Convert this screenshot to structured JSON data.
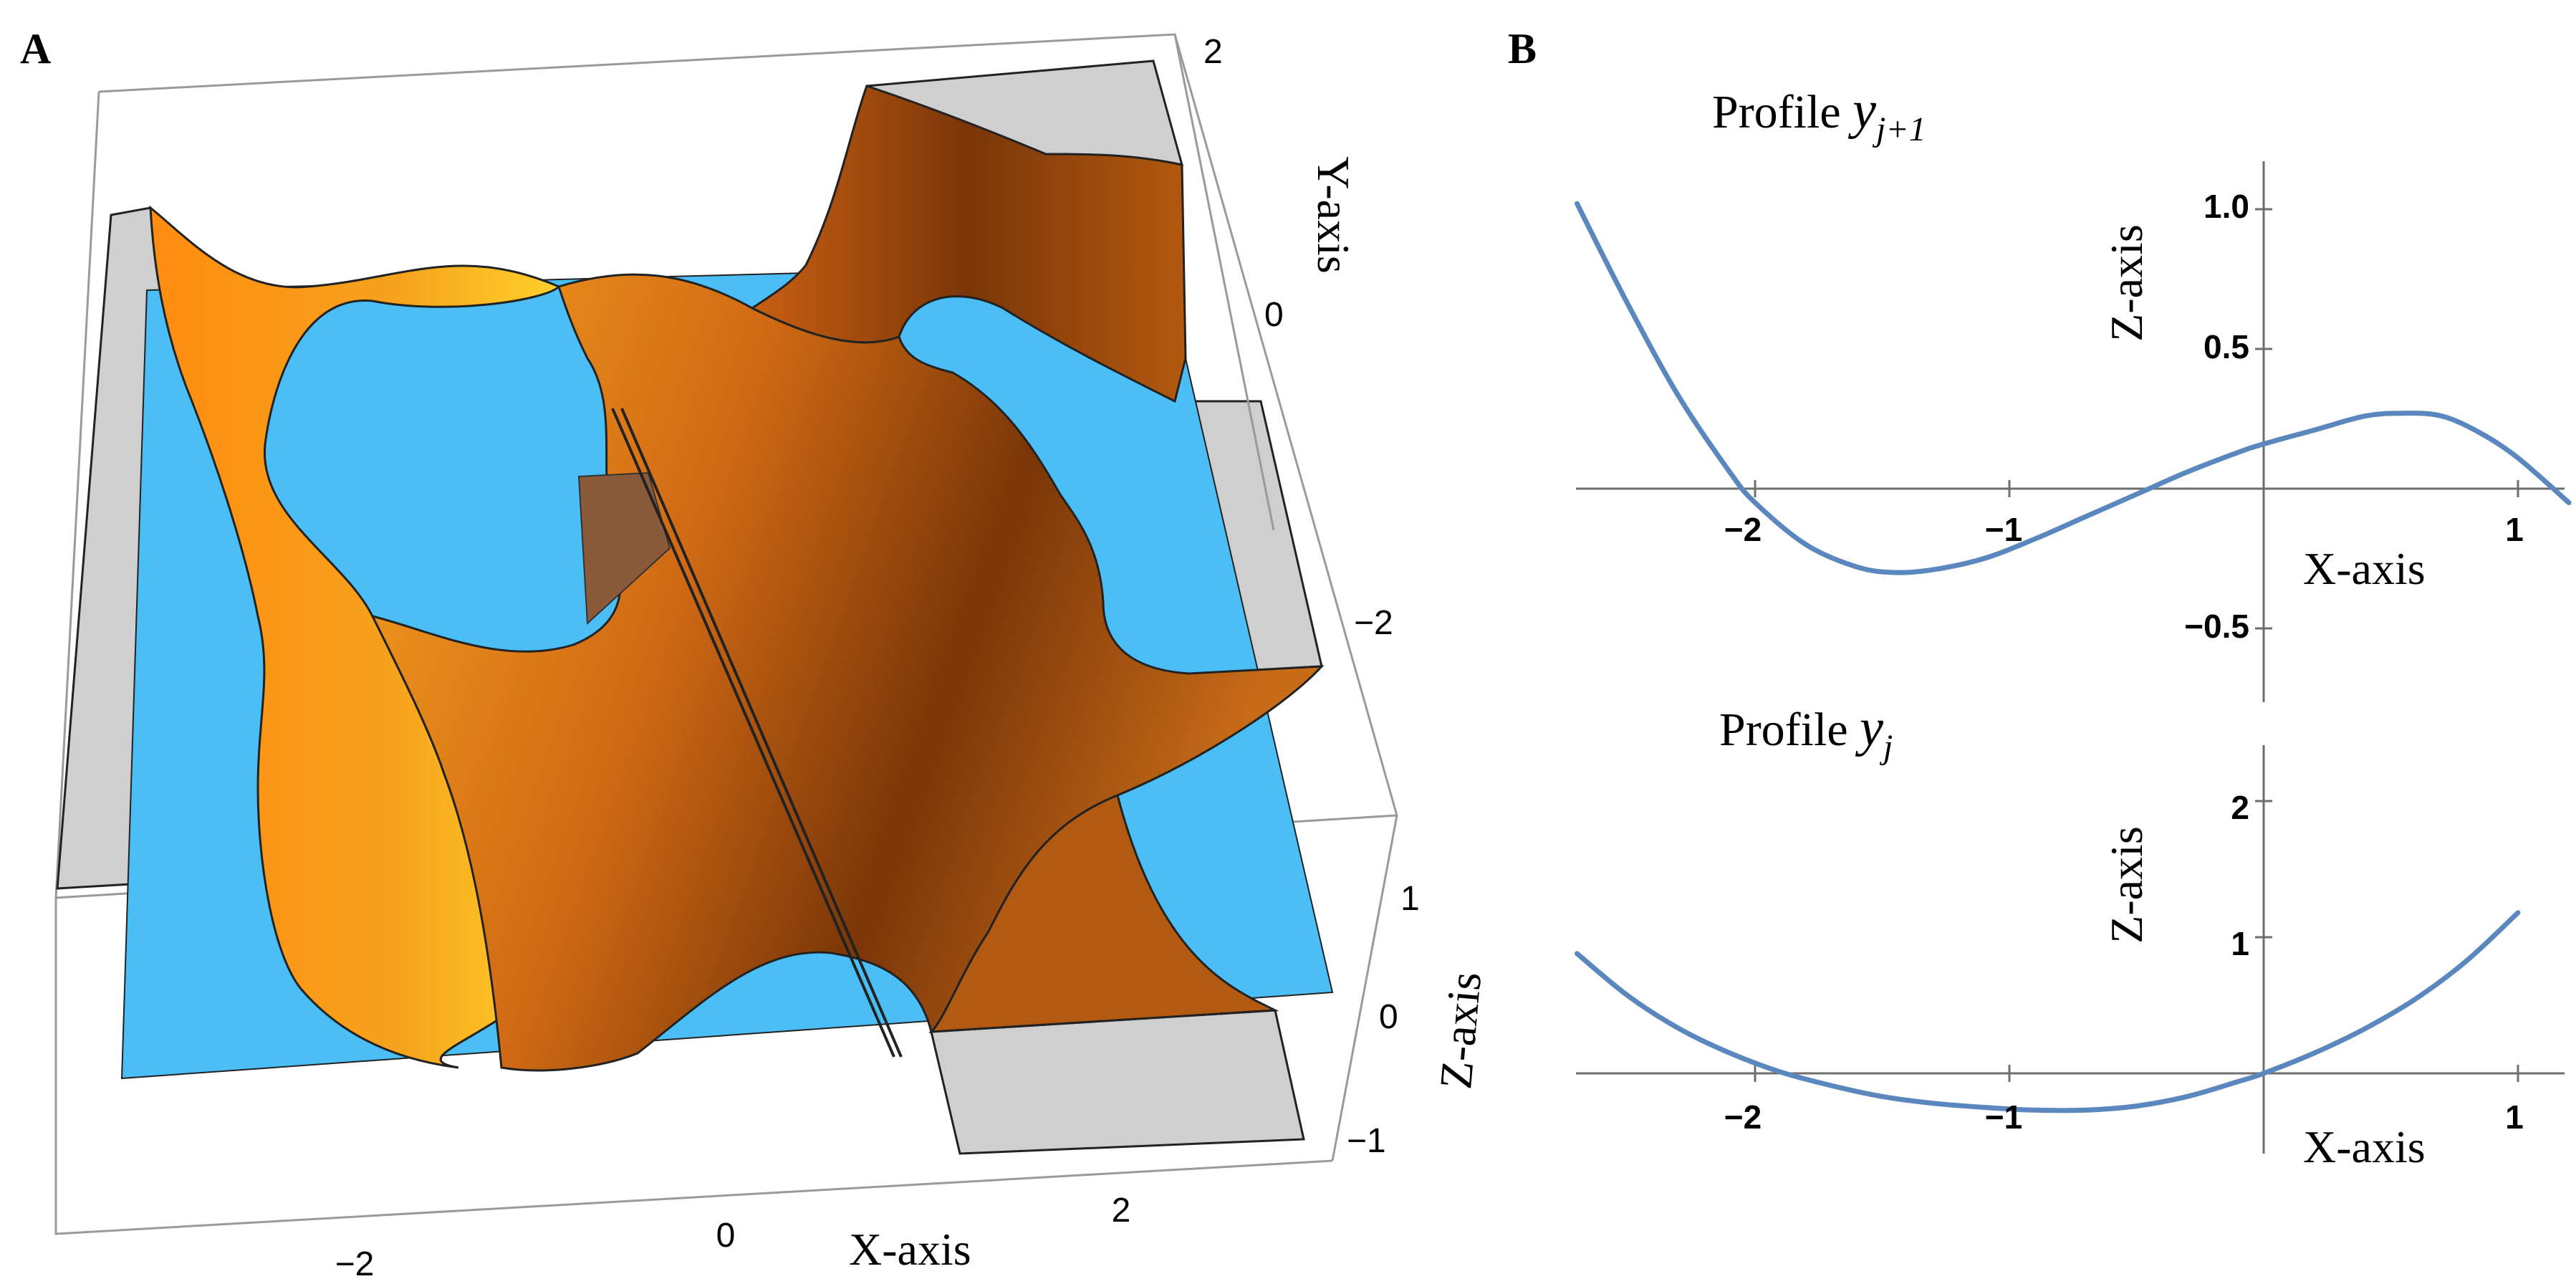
{
  "panel_a": {
    "letter": "A",
    "x_axis_label": "X-axis",
    "y_axis_label": "Y-axis",
    "z_axis_label": "Z-axis",
    "x_ticks": [
      "−2",
      "0",
      "2"
    ],
    "y_ticks": [
      "2",
      "0",
      "−2"
    ],
    "z_ticks": [
      "1",
      "0",
      "−1"
    ],
    "colors": {
      "plane": "#4bbef5",
      "surface_light": "#ffcc22",
      "surface_mid": "#f28c18",
      "surface_dark": "#7a3608",
      "cap": "#cfcfcf"
    }
  },
  "panel_b": {
    "letter": "B",
    "top_title_text": "Profile ",
    "top_title_var": "y",
    "top_title_sub": "j+1",
    "bottom_title_text": "Profile ",
    "bottom_title_var": "y",
    "bottom_title_sub": "j",
    "curve_color": "#5b87bf",
    "chart_data": [
      {
        "type": "line",
        "title": "Profile y_{j+1}",
        "xlabel": "X-axis",
        "ylabel": "Z-axis",
        "xlim": [
          -2.7,
          1.2
        ],
        "ylim": [
          -0.75,
          1.2
        ],
        "x_ticks": [
          "−2",
          "−1",
          "1"
        ],
        "y_ticks": [
          "1.0",
          "0.5",
          "−0.5"
        ],
        "series": [
          {
            "name": "profile_y_j+1",
            "x": [
              -2.7,
              -2.5,
              -2.3,
              -2.1,
              -2.0,
              -1.8,
              -1.6,
              -1.45,
              -1.3,
              -1.1,
              -0.9,
              -0.7,
              -0.5,
              -0.3,
              -0.1,
              0.0,
              0.2,
              0.4,
              0.55,
              0.7,
              0.85,
              1.0,
              1.2
            ],
            "y": [
              1.02,
              0.66,
              0.33,
              0.06,
              -0.05,
              -0.2,
              -0.28,
              -0.3,
              -0.29,
              -0.25,
              -0.18,
              -0.1,
              -0.02,
              0.06,
              0.13,
              0.16,
              0.21,
              0.26,
              0.27,
              0.26,
              0.2,
              0.11,
              -0.05
            ]
          }
        ]
      },
      {
        "type": "line",
        "title": "Profile y_j",
        "xlabel": "X-axis",
        "ylabel": "Z-axis",
        "xlim": [
          -2.7,
          1.2
        ],
        "ylim": [
          -0.6,
          2.4
        ],
        "x_ticks": [
          "−2",
          "−1",
          "1"
        ],
        "y_ticks": [
          "2",
          "1"
        ],
        "series": [
          {
            "name": "profile_y_j",
            "x": [
              -2.7,
              -2.5,
              -2.3,
              -2.1,
              -1.9,
              -1.7,
              -1.5,
              -1.3,
              -1.1,
              -0.9,
              -0.7,
              -0.5,
              -0.3,
              -0.1,
              0.0,
              0.2,
              0.4,
              0.6,
              0.8,
              1.0
            ],
            "y": [
              0.88,
              0.57,
              0.33,
              0.15,
              0.01,
              -0.09,
              -0.17,
              -0.22,
              -0.25,
              -0.27,
              -0.27,
              -0.24,
              -0.17,
              -0.06,
              0.0,
              0.15,
              0.33,
              0.55,
              0.83,
              1.18
            ]
          }
        ]
      }
    ]
  }
}
